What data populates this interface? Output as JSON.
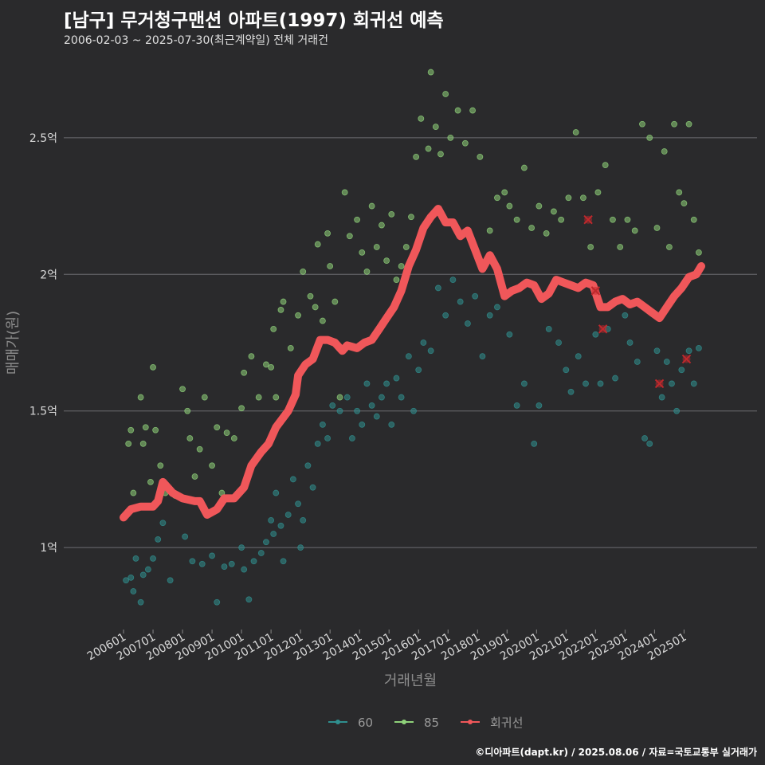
{
  "title": "[남구] 무거청구맨션 아파트(1997) 회귀선 예측",
  "subtitle": "2006-02-03 ~ 2025-07-30(최근계약일) 전체 거래건",
  "caption": "©디아파트(dapt.kr) / 2025.08.06 / 자료=국토교통부 실거래가",
  "colors": {
    "background": "#2a2a2c",
    "grid": "#5a5a5e",
    "series_60": "#2f8f8f",
    "series_85": "#8fd27a",
    "regression": "#f0575a",
    "outlier": "#c0282c"
  },
  "chart_data": {
    "type": "scatter",
    "title": "[남구] 무거청구맨션 아파트(1997) 회귀선 예측",
    "subtitle": "2006-02-03 ~ 2025-07-30(최근계약일) 전체 거래건",
    "xlabel": "거래년월",
    "ylabel": "매매가(원)",
    "x_range": [
      "2006-01",
      "2025-08"
    ],
    "ylim": [
      0.7,
      2.8
    ],
    "y_unit": "억",
    "y_ticks": [
      1,
      1.5,
      2,
      2.5
    ],
    "y_tick_labels": [
      "1억",
      "1.5억",
      "2억",
      "2.5억"
    ],
    "x_ticks": [
      "2006-01",
      "2007-01",
      "2008-01",
      "2009-01",
      "2010-01",
      "2011-01",
      "2012-01",
      "2013-01",
      "2014-01",
      "2015-01",
      "2016-01",
      "2017-01",
      "2018-01",
      "2019-01",
      "2020-01",
      "2021-01",
      "2022-01",
      "2023-01",
      "2024-01",
      "2025-01"
    ],
    "x_tick_labels": [
      "200601",
      "200701",
      "200801",
      "200901",
      "201001",
      "201101",
      "201201",
      "201301",
      "201401",
      "201501",
      "201601",
      "201701",
      "201801",
      "201901",
      "202001",
      "202101",
      "202201",
      "202301",
      "202401",
      "202501"
    ],
    "grid": "horizontal",
    "legend_position": "bottom",
    "legend": [
      "60",
      "85",
      "회귀선"
    ],
    "series": [
      {
        "name": "60",
        "points": [
          [
            "2006-02",
            0.88
          ],
          [
            "2006-04",
            0.89
          ],
          [
            "2006-05",
            0.84
          ],
          [
            "2006-06",
            0.96
          ],
          [
            "2006-08",
            0.8
          ],
          [
            "2006-09",
            0.9
          ],
          [
            "2006-11",
            0.92
          ],
          [
            "2007-01",
            0.96
          ],
          [
            "2007-03",
            1.03
          ],
          [
            "2007-05",
            1.09
          ],
          [
            "2007-08",
            0.88
          ],
          [
            "2008-02",
            1.04
          ],
          [
            "2008-05",
            0.95
          ],
          [
            "2008-09",
            0.94
          ],
          [
            "2009-01",
            0.97
          ],
          [
            "2009-03",
            0.8
          ],
          [
            "2009-06",
            0.93
          ],
          [
            "2009-09",
            0.94
          ],
          [
            "2010-01",
            1.0
          ],
          [
            "2010-02",
            0.92
          ],
          [
            "2010-04",
            0.81
          ],
          [
            "2010-06",
            0.95
          ],
          [
            "2010-09",
            0.98
          ],
          [
            "2010-11",
            1.02
          ],
          [
            "2011-01",
            1.1
          ],
          [
            "2011-02",
            1.05
          ],
          [
            "2011-03",
            1.2
          ],
          [
            "2011-05",
            1.08
          ],
          [
            "2011-06",
            0.95
          ],
          [
            "2011-08",
            1.12
          ],
          [
            "2011-10",
            1.25
          ],
          [
            "2011-12",
            1.16
          ],
          [
            "2012-01",
            1.0
          ],
          [
            "2012-02",
            1.1
          ],
          [
            "2012-04",
            1.3
          ],
          [
            "2012-06",
            1.22
          ],
          [
            "2012-08",
            1.38
          ],
          [
            "2012-10",
            1.45
          ],
          [
            "2012-12",
            1.4
          ],
          [
            "2013-02",
            1.52
          ],
          [
            "2013-05",
            1.5
          ],
          [
            "2013-08",
            1.55
          ],
          [
            "2013-10",
            1.4
          ],
          [
            "2013-12",
            1.5
          ],
          [
            "2014-02",
            1.45
          ],
          [
            "2014-04",
            1.6
          ],
          [
            "2014-06",
            1.52
          ],
          [
            "2014-08",
            1.48
          ],
          [
            "2014-10",
            1.55
          ],
          [
            "2014-12",
            1.6
          ],
          [
            "2015-02",
            1.45
          ],
          [
            "2015-04",
            1.62
          ],
          [
            "2015-06",
            1.55
          ],
          [
            "2015-09",
            1.7
          ],
          [
            "2015-11",
            1.5
          ],
          [
            "2016-01",
            1.65
          ],
          [
            "2016-03",
            1.75
          ],
          [
            "2016-06",
            1.72
          ],
          [
            "2016-09",
            1.95
          ],
          [
            "2016-12",
            1.85
          ],
          [
            "2017-03",
            1.98
          ],
          [
            "2017-06",
            1.9
          ],
          [
            "2017-09",
            1.82
          ],
          [
            "2017-12",
            1.92
          ],
          [
            "2018-03",
            1.7
          ],
          [
            "2018-06",
            1.85
          ],
          [
            "2018-09",
            1.88
          ],
          [
            "2019-02",
            1.78
          ],
          [
            "2019-05",
            1.52
          ],
          [
            "2019-08",
            1.6
          ],
          [
            "2019-12",
            1.38
          ],
          [
            "2020-02",
            1.52
          ],
          [
            "2020-06",
            1.8
          ],
          [
            "2020-10",
            1.75
          ],
          [
            "2021-01",
            1.65
          ],
          [
            "2021-03",
            1.57
          ],
          [
            "2021-06",
            1.7
          ],
          [
            "2021-09",
            1.6
          ],
          [
            "2022-01",
            1.78
          ],
          [
            "2022-03",
            1.6
          ],
          [
            "2022-06",
            1.8
          ],
          [
            "2022-09",
            1.62
          ],
          [
            "2023-01",
            1.85
          ],
          [
            "2023-03",
            1.75
          ],
          [
            "2023-06",
            1.68
          ],
          [
            "2023-09",
            1.4
          ],
          [
            "2023-11",
            1.38
          ],
          [
            "2024-02",
            1.72
          ],
          [
            "2024-04",
            1.55
          ],
          [
            "2024-06",
            1.68
          ],
          [
            "2024-08",
            1.6
          ],
          [
            "2024-10",
            1.5
          ],
          [
            "2024-12",
            1.65
          ],
          [
            "2025-03",
            1.72
          ],
          [
            "2025-05",
            1.6
          ],
          [
            "2025-07",
            1.73
          ]
        ]
      },
      {
        "name": "85",
        "points": [
          [
            "2006-03",
            1.38
          ],
          [
            "2006-04",
            1.43
          ],
          [
            "2006-05",
            1.2
          ],
          [
            "2006-08",
            1.55
          ],
          [
            "2006-09",
            1.38
          ],
          [
            "2006-10",
            1.44
          ],
          [
            "2006-12",
            1.24
          ],
          [
            "2007-01",
            1.66
          ],
          [
            "2007-02",
            1.43
          ],
          [
            "2007-04",
            1.3
          ],
          [
            "2007-06",
            1.2
          ],
          [
            "2007-10",
            1.19
          ],
          [
            "2008-01",
            1.58
          ],
          [
            "2008-03",
            1.5
          ],
          [
            "2008-04",
            1.4
          ],
          [
            "2008-06",
            1.26
          ],
          [
            "2008-08",
            1.36
          ],
          [
            "2008-10",
            1.55
          ],
          [
            "2009-01",
            1.3
          ],
          [
            "2009-03",
            1.44
          ],
          [
            "2009-05",
            1.2
          ],
          [
            "2009-07",
            1.42
          ],
          [
            "2009-10",
            1.4
          ],
          [
            "2010-01",
            1.51
          ],
          [
            "2010-02",
            1.64
          ],
          [
            "2010-05",
            1.7
          ],
          [
            "2010-08",
            1.55
          ],
          [
            "2010-11",
            1.67
          ],
          [
            "2011-01",
            1.66
          ],
          [
            "2011-02",
            1.8
          ],
          [
            "2011-03",
            1.55
          ],
          [
            "2011-05",
            1.87
          ],
          [
            "2011-06",
            1.9
          ],
          [
            "2011-09",
            1.73
          ],
          [
            "2011-12",
            1.85
          ],
          [
            "2012-02",
            2.01
          ],
          [
            "2012-05",
            1.92
          ],
          [
            "2012-07",
            1.88
          ],
          [
            "2012-08",
            2.11
          ],
          [
            "2012-10",
            1.83
          ],
          [
            "2012-12",
            2.15
          ],
          [
            "2013-01",
            2.03
          ],
          [
            "2013-03",
            1.9
          ],
          [
            "2013-05",
            1.55
          ],
          [
            "2013-07",
            2.3
          ],
          [
            "2013-09",
            2.14
          ],
          [
            "2013-12",
            2.2
          ],
          [
            "2014-02",
            2.08
          ],
          [
            "2014-04",
            2.01
          ],
          [
            "2014-06",
            2.25
          ],
          [
            "2014-08",
            2.1
          ],
          [
            "2014-10",
            2.18
          ],
          [
            "2014-12",
            2.05
          ],
          [
            "2015-02",
            2.22
          ],
          [
            "2015-04",
            1.98
          ],
          [
            "2015-06",
            2.03
          ],
          [
            "2015-08",
            2.1
          ],
          [
            "2015-10",
            2.21
          ],
          [
            "2015-12",
            2.43
          ],
          [
            "2016-02",
            2.57
          ],
          [
            "2016-05",
            2.46
          ],
          [
            "2016-06",
            2.74
          ],
          [
            "2016-08",
            2.54
          ],
          [
            "2016-10",
            2.44
          ],
          [
            "2016-12",
            2.66
          ],
          [
            "2017-02",
            2.5
          ],
          [
            "2017-05",
            2.6
          ],
          [
            "2017-08",
            2.48
          ],
          [
            "2017-11",
            2.6
          ],
          [
            "2018-02",
            2.43
          ],
          [
            "2018-06",
            2.16
          ],
          [
            "2018-09",
            2.28
          ],
          [
            "2018-12",
            2.3
          ],
          [
            "2019-02",
            2.25
          ],
          [
            "2019-05",
            2.2
          ],
          [
            "2019-08",
            2.39
          ],
          [
            "2019-11",
            2.17
          ],
          [
            "2020-02",
            2.25
          ],
          [
            "2020-05",
            2.15
          ],
          [
            "2020-08",
            2.23
          ],
          [
            "2020-11",
            2.2
          ],
          [
            "2021-02",
            2.28
          ],
          [
            "2021-05",
            2.52
          ],
          [
            "2021-08",
            2.28
          ],
          [
            "2021-11",
            2.1
          ],
          [
            "2022-02",
            2.3
          ],
          [
            "2022-05",
            2.4
          ],
          [
            "2022-08",
            2.2
          ],
          [
            "2022-11",
            2.1
          ],
          [
            "2023-02",
            2.2
          ],
          [
            "2023-05",
            2.16
          ],
          [
            "2023-08",
            2.55
          ],
          [
            "2023-11",
            2.5
          ],
          [
            "2024-02",
            2.17
          ],
          [
            "2024-05",
            2.45
          ],
          [
            "2024-07",
            2.1
          ],
          [
            "2024-09",
            2.55
          ],
          [
            "2024-11",
            2.3
          ],
          [
            "2025-01",
            2.26
          ],
          [
            "2025-03",
            2.55
          ],
          [
            "2025-05",
            2.2
          ],
          [
            "2025-07",
            2.08
          ]
        ]
      }
    ],
    "outliers": [
      [
        "2021-10",
        2.2
      ],
      [
        "2022-01",
        1.94
      ],
      [
        "2022-04",
        1.8
      ],
      [
        "2024-03",
        1.6
      ],
      [
        "2025-02",
        1.69
      ]
    ],
    "regression": {
      "name": "회귀선",
      "points": [
        [
          "2006-01",
          1.11
        ],
        [
          "2006-04",
          1.14
        ],
        [
          "2006-08",
          1.15
        ],
        [
          "2007-01",
          1.15
        ],
        [
          "2007-03",
          1.17
        ],
        [
          "2007-05",
          1.24
        ],
        [
          "2007-09",
          1.2
        ],
        [
          "2008-01",
          1.18
        ],
        [
          "2008-06",
          1.17
        ],
        [
          "2008-08",
          1.17
        ],
        [
          "2008-11",
          1.12
        ],
        [
          "2009-03",
          1.14
        ],
        [
          "2009-06",
          1.18
        ],
        [
          "2009-10",
          1.18
        ],
        [
          "2010-02",
          1.22
        ],
        [
          "2010-05",
          1.3
        ],
        [
          "2010-09",
          1.35
        ],
        [
          "2010-12",
          1.38
        ],
        [
          "2011-03",
          1.44
        ],
        [
          "2011-08",
          1.5
        ],
        [
          "2011-11",
          1.56
        ],
        [
          "2011-12",
          1.63
        ],
        [
          "2012-03",
          1.67
        ],
        [
          "2012-06",
          1.69
        ],
        [
          "2012-09",
          1.76
        ],
        [
          "2012-12",
          1.76
        ],
        [
          "2013-03",
          1.75
        ],
        [
          "2013-06",
          1.72
        ],
        [
          "2013-08",
          1.74
        ],
        [
          "2013-12",
          1.73
        ],
        [
          "2014-03",
          1.75
        ],
        [
          "2014-06",
          1.76
        ],
        [
          "2014-09",
          1.8
        ],
        [
          "2014-12",
          1.84
        ],
        [
          "2015-03",
          1.88
        ],
        [
          "2015-06",
          1.94
        ],
        [
          "2015-09",
          2.03
        ],
        [
          "2015-12",
          2.09
        ],
        [
          "2016-03",
          2.17
        ],
        [
          "2016-06",
          2.21
        ],
        [
          "2016-09",
          2.24
        ],
        [
          "2016-12",
          2.19
        ],
        [
          "2017-03",
          2.19
        ],
        [
          "2017-06",
          2.14
        ],
        [
          "2017-09",
          2.16
        ],
        [
          "2017-12",
          2.09
        ],
        [
          "2018-03",
          2.02
        ],
        [
          "2018-06",
          2.07
        ],
        [
          "2018-09",
          2.02
        ],
        [
          "2018-12",
          1.92
        ],
        [
          "2019-03",
          1.94
        ],
        [
          "2019-06",
          1.95
        ],
        [
          "2019-09",
          1.97
        ],
        [
          "2019-12",
          1.96
        ],
        [
          "2020-03",
          1.91
        ],
        [
          "2020-06",
          1.93
        ],
        [
          "2020-09",
          1.98
        ],
        [
          "2020-12",
          1.97
        ],
        [
          "2021-03",
          1.96
        ],
        [
          "2021-06",
          1.95
        ],
        [
          "2021-09",
          1.97
        ],
        [
          "2021-12",
          1.96
        ],
        [
          "2022-03",
          1.88
        ],
        [
          "2022-06",
          1.88
        ],
        [
          "2022-09",
          1.9
        ],
        [
          "2022-12",
          1.91
        ],
        [
          "2023-03",
          1.89
        ],
        [
          "2023-06",
          1.9
        ],
        [
          "2023-09",
          1.88
        ],
        [
          "2023-12",
          1.86
        ],
        [
          "2024-03",
          1.84
        ],
        [
          "2024-06",
          1.88
        ],
        [
          "2024-09",
          1.92
        ],
        [
          "2024-12",
          1.95
        ],
        [
          "2025-03",
          1.99
        ],
        [
          "2025-06",
          2.0
        ],
        [
          "2025-08",
          2.03
        ]
      ]
    }
  }
}
